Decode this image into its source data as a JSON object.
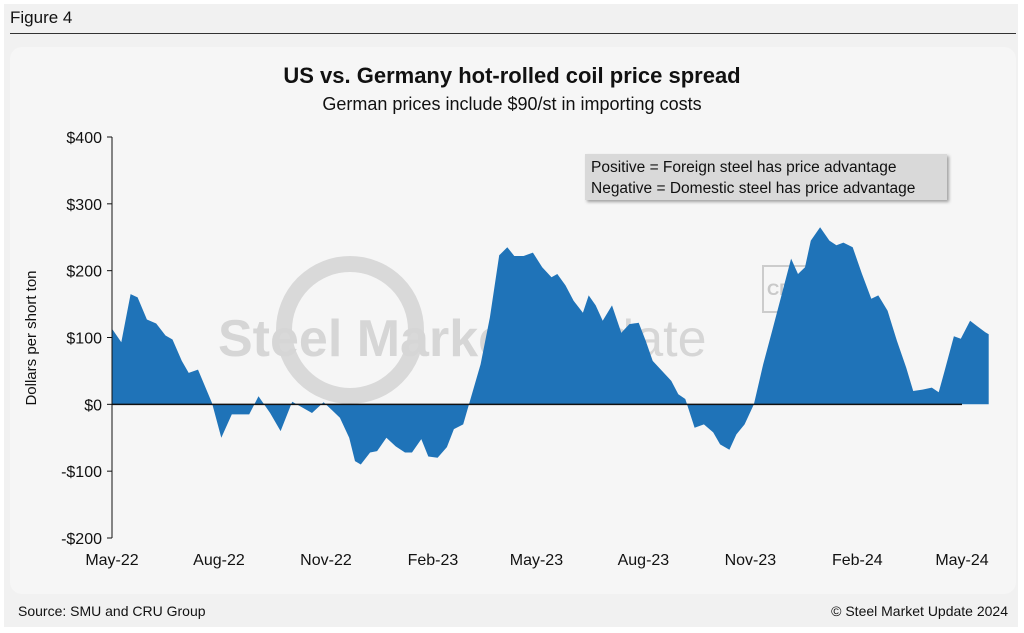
{
  "figure_label": "Figure 4",
  "source": "Source: SMU and CRU Group",
  "copyright": "© Steel Market Update 2024",
  "watermark": {
    "bold": "Steel Market",
    "light": " Update",
    "cru": "CRU"
  },
  "note": {
    "line1": "Positive = Foreign steel has price advantage",
    "line2": "Negative = Domestic steel has price advantage"
  },
  "colors": {
    "area": "#1f73b8",
    "zero_line": "#111111",
    "background": "#f6f6f6"
  },
  "chart_data": {
    "type": "area",
    "title": "US vs. Germany hot-rolled coil price spread",
    "subtitle": "German prices include $90/st in importing costs",
    "ylabel": "Dollars per short ton",
    "xlabel": "",
    "ylim": [
      -200,
      400
    ],
    "yticks": [
      -200,
      -100,
      0,
      100,
      200,
      300,
      400
    ],
    "ytick_labels": [
      "-$200",
      "-$100",
      "$0",
      "$100",
      "$200",
      "$300",
      "$400"
    ],
    "xlim": [
      "2022-05-01",
      "2024-05-01"
    ],
    "xtick_dates": [
      "2022-05-01",
      "2022-08-01",
      "2022-11-01",
      "2023-02-01",
      "2023-05-01",
      "2023-08-01",
      "2023-11-01",
      "2024-02-01",
      "2024-05-01"
    ],
    "xtick_labels": [
      "May-22",
      "Aug-22",
      "Nov-22",
      "Feb-23",
      "May-23",
      "Aug-23",
      "Nov-23",
      "Feb-24",
      "May-24"
    ],
    "grid": false,
    "series": [
      {
        "name": "",
        "points": [
          [
            "2022-05-01",
            113
          ],
          [
            "2022-05-09",
            93
          ],
          [
            "2022-05-17",
            165
          ],
          [
            "2022-05-23",
            160
          ],
          [
            "2022-05-31",
            127
          ],
          [
            "2022-06-08",
            121
          ],
          [
            "2022-06-16",
            103
          ],
          [
            "2022-06-22",
            97
          ],
          [
            "2022-06-30",
            65
          ],
          [
            "2022-07-06",
            47
          ],
          [
            "2022-07-14",
            52
          ],
          [
            "2022-07-26",
            2
          ],
          [
            "2022-08-03",
            -50
          ],
          [
            "2022-08-12",
            -15
          ],
          [
            "2022-08-27",
            -15
          ],
          [
            "2022-09-04",
            12
          ],
          [
            "2022-09-14",
            -13
          ],
          [
            "2022-09-23",
            -40
          ],
          [
            "2022-10-03",
            4
          ],
          [
            "2022-10-20",
            -13
          ],
          [
            "2022-10-30",
            3
          ],
          [
            "2022-11-07",
            -10
          ],
          [
            "2022-11-13",
            -20
          ],
          [
            "2022-11-21",
            -50
          ],
          [
            "2022-11-26",
            -85
          ],
          [
            "2022-12-01",
            -90
          ],
          [
            "2022-12-09",
            -72
          ],
          [
            "2022-12-15",
            -70
          ],
          [
            "2022-12-23",
            -50
          ],
          [
            "2022-12-31",
            -63
          ],
          [
            "2023-01-08",
            -72
          ],
          [
            "2023-01-14",
            -72
          ],
          [
            "2023-01-22",
            -52
          ],
          [
            "2023-01-28",
            -78
          ],
          [
            "2023-02-05",
            -80
          ],
          [
            "2023-02-13",
            -64
          ],
          [
            "2023-02-19",
            -37
          ],
          [
            "2023-02-27",
            -30
          ],
          [
            "2023-03-04",
            0
          ],
          [
            "2023-03-14",
            60
          ],
          [
            "2023-03-22",
            130
          ],
          [
            "2023-03-30",
            223
          ],
          [
            "2023-04-06",
            235
          ],
          [
            "2023-04-12",
            222
          ],
          [
            "2023-04-20",
            222
          ],
          [
            "2023-04-28",
            227
          ],
          [
            "2023-05-06",
            205
          ],
          [
            "2023-05-14",
            190
          ],
          [
            "2023-05-19",
            195
          ],
          [
            "2023-05-26",
            178
          ],
          [
            "2023-06-02",
            155
          ],
          [
            "2023-06-10",
            137
          ],
          [
            "2023-06-15",
            163
          ],
          [
            "2023-06-21",
            148
          ],
          [
            "2023-06-27",
            125
          ],
          [
            "2023-07-05",
            148
          ],
          [
            "2023-07-13",
            107
          ],
          [
            "2023-07-20",
            120
          ],
          [
            "2023-07-28",
            122
          ],
          [
            "2023-08-03",
            95
          ],
          [
            "2023-08-09",
            65
          ],
          [
            "2023-08-17",
            50
          ],
          [
            "2023-08-25",
            35
          ],
          [
            "2023-08-31",
            15
          ],
          [
            "2023-09-06",
            8
          ],
          [
            "2023-09-14",
            -35
          ],
          [
            "2023-09-22",
            -30
          ],
          [
            "2023-09-30",
            -42
          ],
          [
            "2023-10-06",
            -60
          ],
          [
            "2023-10-14",
            -68
          ],
          [
            "2023-10-20",
            -45
          ],
          [
            "2023-10-27",
            -30
          ],
          [
            "2023-11-04",
            0
          ],
          [
            "2023-11-12",
            60
          ],
          [
            "2023-11-20",
            112
          ],
          [
            "2023-11-28",
            165
          ],
          [
            "2023-12-06",
            218
          ],
          [
            "2023-12-12",
            195
          ],
          [
            "2023-12-18",
            205
          ],
          [
            "2023-12-23",
            245
          ],
          [
            "2023-12-31",
            265
          ],
          [
            "2024-01-08",
            245
          ],
          [
            "2024-01-14",
            238
          ],
          [
            "2024-01-20",
            242
          ],
          [
            "2024-01-28",
            235
          ],
          [
            "2024-02-05",
            195
          ],
          [
            "2024-02-13",
            158
          ],
          [
            "2024-02-19",
            163
          ],
          [
            "2024-02-27",
            140
          ],
          [
            "2024-03-06",
            95
          ],
          [
            "2024-03-14",
            55
          ],
          [
            "2024-03-20",
            20
          ],
          [
            "2024-03-28",
            22
          ],
          [
            "2024-04-05",
            25
          ],
          [
            "2024-04-11",
            18
          ],
          [
            "2024-04-16",
            50
          ],
          [
            "2024-04-24",
            102
          ],
          [
            "2024-04-30",
            98
          ],
          [
            "2024-05-08",
            125
          ],
          [
            "2024-05-14",
            117
          ],
          [
            "2024-05-21",
            108
          ],
          [
            "2024-05-24",
            105
          ]
        ]
      }
    ]
  }
}
